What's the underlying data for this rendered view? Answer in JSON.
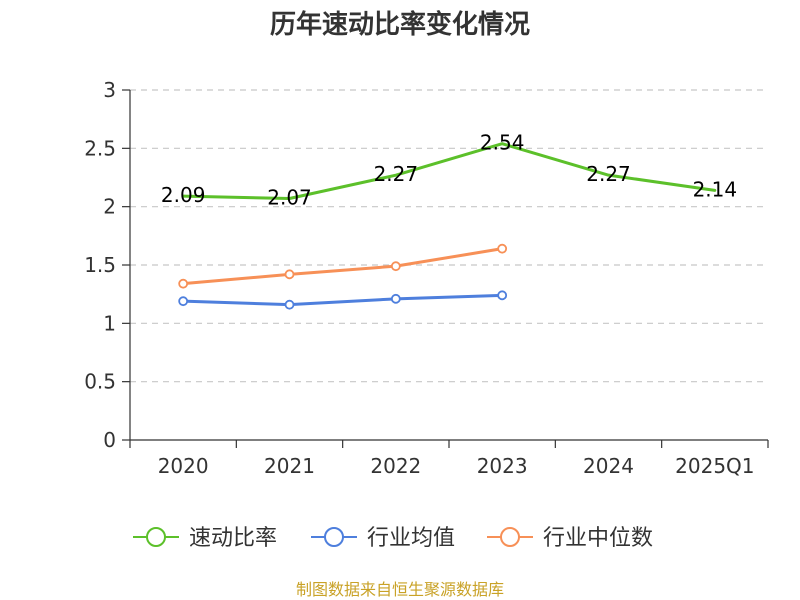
{
  "title": "历年速动比率变化情况",
  "source": "制图数据来自恒生聚源数据库",
  "colors": {
    "grid": "#c8c8c8",
    "axis": "#333333",
    "source": "#c9a227"
  },
  "chart_data": {
    "type": "line",
    "title": "历年速动比率变化情况",
    "categories": [
      "2020",
      "2021",
      "2022",
      "2023",
      "2024",
      "2025Q1"
    ],
    "ylim": [
      0,
      3
    ],
    "yticks": [
      0,
      0.5,
      1,
      1.5,
      2,
      2.5,
      3
    ],
    "ytick_labels": [
      "0",
      "0.5",
      "1",
      "1.5",
      "2",
      "2.5",
      "3"
    ],
    "grid": true,
    "legend_position": "bottom",
    "series": [
      {
        "name": "速动比率",
        "color": "#5cc02a",
        "values": [
          2.09,
          2.07,
          2.27,
          2.54,
          2.27,
          2.14
        ],
        "data_labels": [
          "2.09",
          "2.07",
          "2.27",
          "2.54",
          "2.27",
          "2.14"
        ],
        "show_markers": false
      },
      {
        "name": "行业均值",
        "color": "#4e7fdd",
        "values": [
          1.19,
          1.16,
          1.21,
          1.24,
          null,
          null
        ],
        "data_labels": [],
        "show_markers": true
      },
      {
        "name": "行业中位数",
        "color": "#f79057",
        "values": [
          1.34,
          1.42,
          1.49,
          1.64,
          null,
          null
        ],
        "data_labels": [],
        "show_markers": true
      }
    ]
  }
}
